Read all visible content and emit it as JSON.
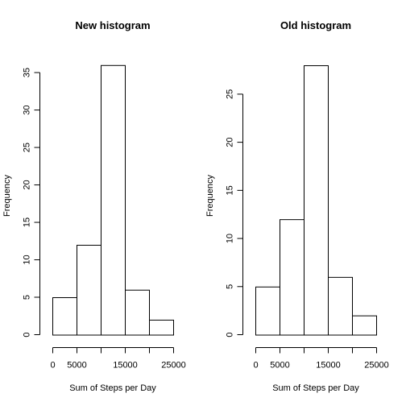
{
  "chart_data": [
    {
      "type": "bar",
      "title": "New histogram",
      "xlabel": "Sum of Steps per Day",
      "ylabel": "Frequency",
      "bin_edges": [
        0,
        5000,
        10000,
        15000,
        20000,
        25000
      ],
      "values": [
        5,
        12,
        36,
        6,
        2
      ],
      "xticks": [
        0,
        5000,
        10000,
        15000,
        20000,
        25000
      ],
      "xtick_labels": [
        "0",
        "5000",
        "",
        "15000",
        "",
        "25000"
      ],
      "yticks": [
        0,
        5,
        10,
        15,
        20,
        25,
        30,
        35
      ],
      "yticks_labels": [
        "0",
        "5",
        "10",
        "15",
        "20",
        "25",
        "30",
        "35"
      ],
      "xlim": [
        0,
        25000
      ],
      "ylim": [
        0,
        37
      ],
      "grid": false
    },
    {
      "type": "bar",
      "title": "Old histogram",
      "xlabel": "Sum of Steps per Day",
      "ylabel": "Frequency",
      "bin_edges": [
        0,
        5000,
        10000,
        15000,
        20000,
        25000
      ],
      "values": [
        5,
        12,
        28,
        6,
        2
      ],
      "xticks": [
        0,
        5000,
        10000,
        15000,
        20000,
        25000
      ],
      "xtick_labels": [
        "0",
        "5000",
        "",
        "15000",
        "",
        "25000"
      ],
      "yticks": [
        0,
        5,
        10,
        15,
        20,
        25
      ],
      "yticks_labels": [
        "0",
        "5",
        "10",
        "15",
        "20",
        "25"
      ],
      "xlim": [
        0,
        25000
      ],
      "ylim": [
        0,
        28.8
      ],
      "grid": false
    }
  ]
}
